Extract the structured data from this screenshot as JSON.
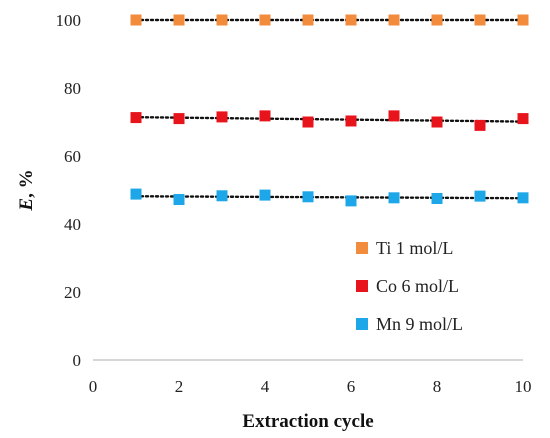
{
  "chart_data": {
    "type": "scatter",
    "xlabel": "Extraction cycle",
    "ylabel_main": "E",
    "ylabel_unit": ", %",
    "xlim": [
      0,
      10
    ],
    "ylim": [
      0,
      100
    ],
    "x_ticks": [
      0,
      2,
      4,
      6,
      8,
      10
    ],
    "y_ticks": [
      0,
      20,
      40,
      60,
      80,
      100
    ],
    "grid": false,
    "legend_position": "bottom-right",
    "trendline": "linear, dotted",
    "series": [
      {
        "name": "Ti 1 mol/L",
        "color": "#f28c3c",
        "x": [
          1,
          2,
          3,
          4,
          5,
          6,
          7,
          8,
          9,
          10
        ],
        "y": [
          100,
          100,
          100,
          100,
          100,
          100,
          100,
          100,
          100,
          100
        ]
      },
      {
        "name": "Co 6 mol/L",
        "color": "#e8141c",
        "x": [
          1,
          2,
          3,
          4,
          5,
          6,
          7,
          8,
          9,
          10
        ],
        "y": [
          71.3,
          71.0,
          71.5,
          71.8,
          70.0,
          70.3,
          71.8,
          70.0,
          69.0,
          71.0
        ]
      },
      {
        "name": "Mn 9 mol/L",
        "color": "#1ea7e8",
        "x": [
          1,
          2,
          3,
          4,
          5,
          6,
          7,
          8,
          9,
          10
        ],
        "y": [
          48.8,
          47.2,
          48.3,
          48.5,
          48.0,
          46.8,
          47.7,
          47.5,
          48.2,
          47.7
        ]
      }
    ]
  }
}
